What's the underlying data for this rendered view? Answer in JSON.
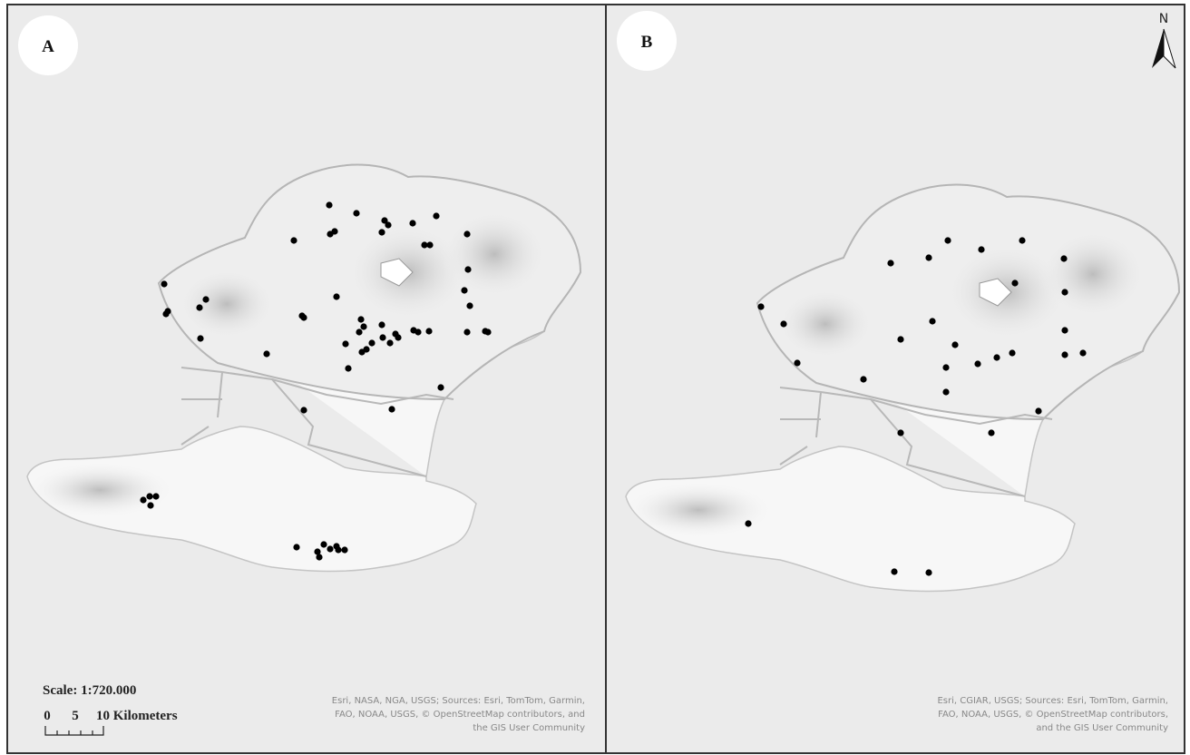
{
  "panels": [
    {
      "label": "A",
      "scale": "Scale: 1:720.000",
      "scale_bar": [
        "0",
        "5",
        "10 Kilometers"
      ],
      "attribution": [
        "Esri, NASA, NGA, USGS; Sources: Esri, TomTom, Garmin,",
        "FAO, NOAA, USGS, © OpenStreetMap contributors, and",
        "the GIS User Community"
      ]
    },
    {
      "label": "B",
      "north": "N",
      "attribution": [
        "Esri, CGIAR, USGS; Sources: Esri, TomTom, Garmin,",
        "FAO, NOAA, USGS, © OpenStreetMap contributors,",
        "and the GIS User Community"
      ]
    }
  ]
}
